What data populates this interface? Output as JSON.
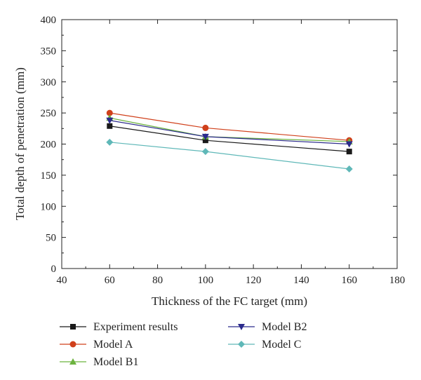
{
  "chart_data": {
    "type": "line",
    "title": "",
    "xlabel": "Thickness of the FC target (mm)",
    "ylabel": "Total depth of penetration (mm)",
    "xlim": [
      40,
      180
    ],
    "ylim": [
      0,
      400
    ],
    "xticks": [
      "40",
      "60",
      "80",
      "100",
      "120",
      "140",
      "160",
      "180"
    ],
    "yticks": [
      "0",
      "50",
      "100",
      "150",
      "200",
      "250",
      "300",
      "350",
      "400"
    ],
    "x": [
      60,
      100,
      160
    ],
    "grid": false,
    "legend_position": "bottom",
    "series": [
      {
        "name": "Experiment results",
        "values": [
          229,
          206,
          188
        ],
        "color": "#1a1a1a",
        "marker": "square"
      },
      {
        "name": "Model A",
        "values": [
          250,
          226,
          206
        ],
        "color": "#d0401b",
        "marker": "circle"
      },
      {
        "name": "Model B1",
        "values": [
          242,
          212,
          204
        ],
        "color": "#6cb33f",
        "marker": "triangle-up"
      },
      {
        "name": "Model B2",
        "values": [
          238,
          212,
          200
        ],
        "color": "#2b2a8c",
        "marker": "triangle-down"
      },
      {
        "name": "Model C",
        "values": [
          203,
          188,
          160
        ],
        "color": "#5fb8b8",
        "marker": "diamond"
      }
    ]
  }
}
